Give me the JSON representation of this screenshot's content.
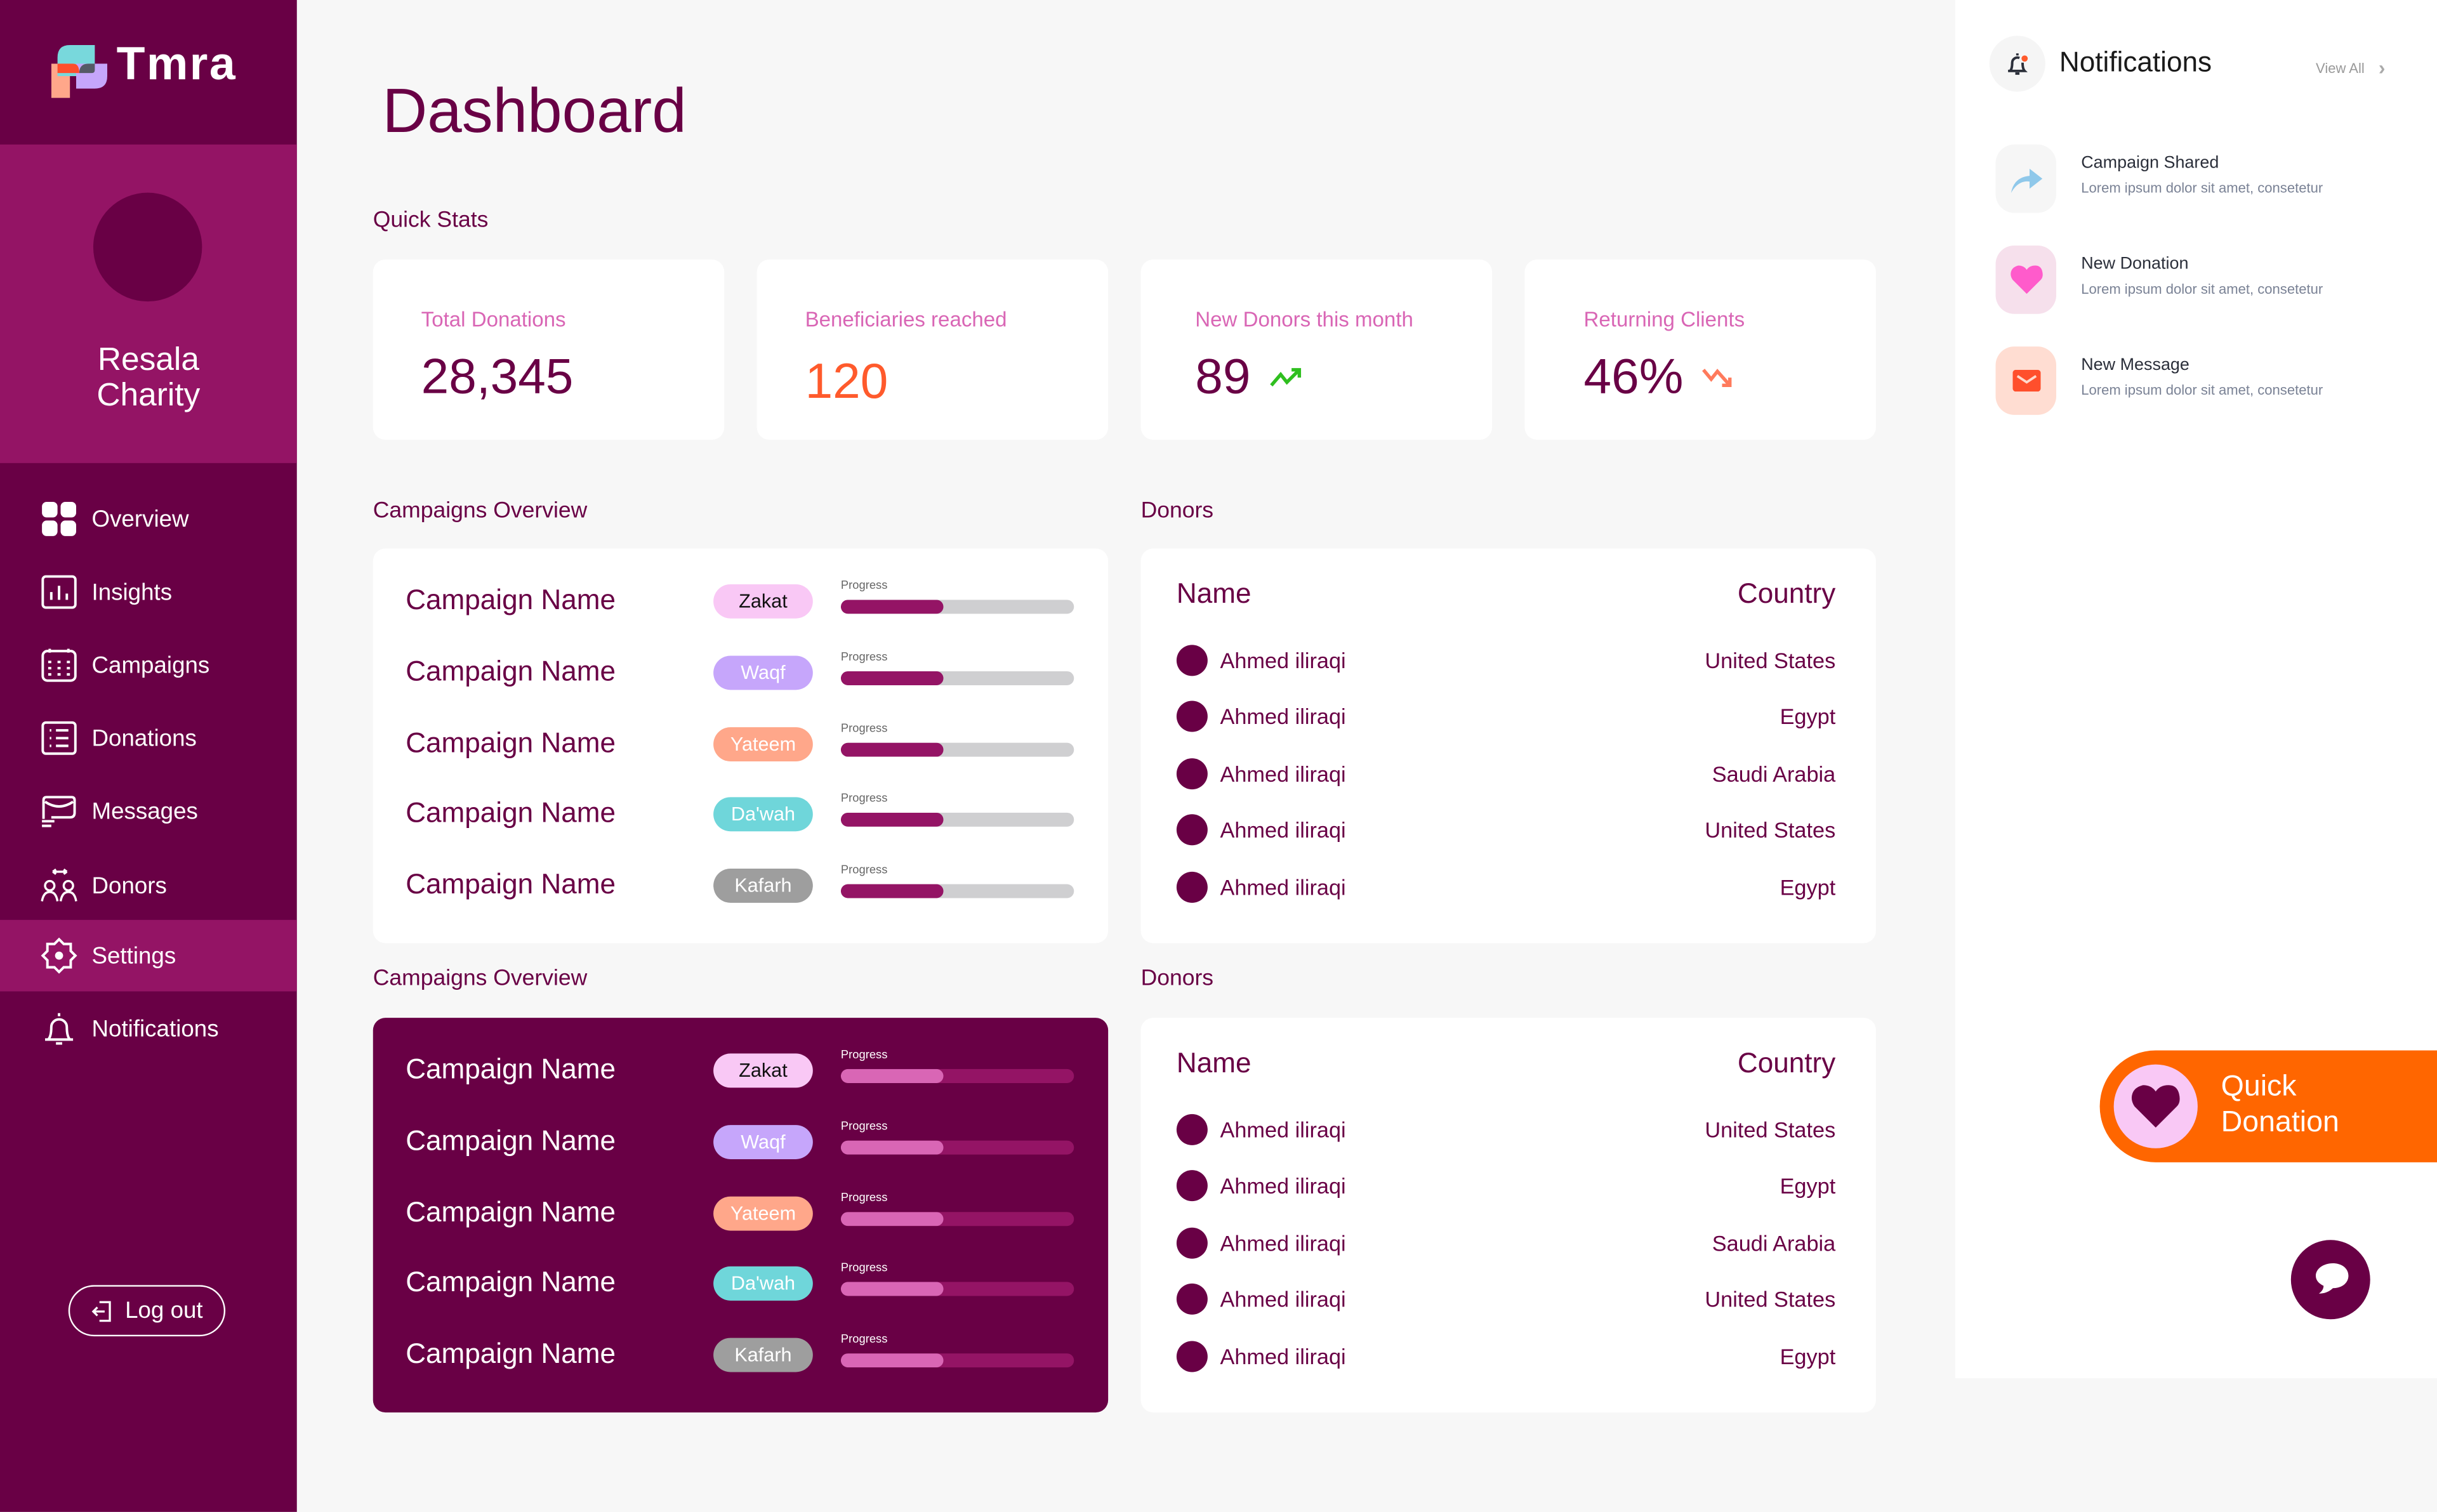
{
  "brand": {
    "name": "Tmra"
  },
  "profile": {
    "name": "Resala Charity"
  },
  "nav": [
    {
      "label": "Overview",
      "icon": "grid-icon"
    },
    {
      "label": "Insights",
      "icon": "bar-chart-icon"
    },
    {
      "label": "Campaigns",
      "icon": "calendar-icon"
    },
    {
      "label": "Donations",
      "icon": "list-icon"
    },
    {
      "label": "Messages",
      "icon": "mail-icon"
    },
    {
      "label": "Donors",
      "icon": "users-icon"
    },
    {
      "label": "Settings",
      "icon": "gear-icon",
      "active": true
    },
    {
      "label": "Notifications",
      "icon": "bell-icon"
    }
  ],
  "logout": "Log out",
  "page_title": "Dashboard",
  "quick_stats": {
    "label": "Quick Stats",
    "cards": [
      {
        "label": "Total Donations",
        "value": "28,345"
      },
      {
        "label": "Beneficiaries reached",
        "value": "120"
      },
      {
        "label": "New Donors this month",
        "value": "89",
        "trend": "up"
      },
      {
        "label": "Returning Clients",
        "value": "46%",
        "trend": "down"
      }
    ]
  },
  "campaigns_1": {
    "label": "Campaigns Overview",
    "rows": [
      {
        "name": "Campaign Name",
        "tag": "Zakat",
        "progress_label": "Progress",
        "progress": 44
      },
      {
        "name": "Campaign Name",
        "tag": "Waqf",
        "progress_label": "Progress",
        "progress": 44
      },
      {
        "name": "Campaign Name",
        "tag": "Yateem",
        "progress_label": "Progress",
        "progress": 44
      },
      {
        "name": "Campaign Name",
        "tag": "Da'wah",
        "progress_label": "Progress",
        "progress": 44
      },
      {
        "name": "Campaign Name",
        "tag": "Kafarh",
        "progress_label": "Progress",
        "progress": 44
      }
    ]
  },
  "campaigns_2": {
    "label": "Campaigns Overview",
    "rows": [
      {
        "name": "Campaign Name",
        "tag": "Zakat",
        "progress_label": "Progress",
        "progress": 44
      },
      {
        "name": "Campaign Name",
        "tag": "Waqf",
        "progress_label": "Progress",
        "progress": 44
      },
      {
        "name": "Campaign Name",
        "tag": "Yateem",
        "progress_label": "Progress",
        "progress": 44
      },
      {
        "name": "Campaign Name",
        "tag": "Da'wah",
        "progress_label": "Progress",
        "progress": 44
      },
      {
        "name": "Campaign Name",
        "tag": "Kafarh",
        "progress_label": "Progress",
        "progress": 44
      }
    ]
  },
  "tag_colors": {
    "Zakat": [
      "#f9c8f5",
      "#111111"
    ],
    "Waqf": [
      "#c6a6fb",
      "#ffffff"
    ],
    "Yateem": [
      "#ffa78a",
      "#ffffff"
    ],
    "Da'wah": [
      "#6fd6da",
      "#ffffff"
    ],
    "Kafarh": [
      "#9e9e9e",
      "#ffffff"
    ]
  },
  "donors_1": {
    "label": "Donors",
    "col_name": "Name",
    "col_country": "Country",
    "rows": [
      {
        "name": "Ahmed iliraqi",
        "country": "United States"
      },
      {
        "name": "Ahmed iliraqi",
        "country": "Egypt"
      },
      {
        "name": "Ahmed iliraqi",
        "country": "Saudi Arabia"
      },
      {
        "name": "Ahmed iliraqi",
        "country": "United States"
      },
      {
        "name": "Ahmed iliraqi",
        "country": "Egypt"
      }
    ]
  },
  "donors_2": {
    "label": "Donors",
    "col_name": "Name",
    "col_country": "Country",
    "rows": [
      {
        "name": "Ahmed iliraqi",
        "country": "United States"
      },
      {
        "name": "Ahmed iliraqi",
        "country": "Egypt"
      },
      {
        "name": "Ahmed iliraqi",
        "country": "Saudi Arabia"
      },
      {
        "name": "Ahmed iliraqi",
        "country": "United States"
      },
      {
        "name": "Ahmed iliraqi",
        "country": "Egypt"
      }
    ]
  },
  "notifications": {
    "title": "Notifications",
    "view_all": "View All",
    "items": [
      {
        "title": "Campaign Shared",
        "body": "Lorem ipsum dolor sit amet, consetetur",
        "icon": "share-icon"
      },
      {
        "title": "New Donation",
        "body": "Lorem ipsum dolor sit amet, consetetur",
        "icon": "heart-icon"
      },
      {
        "title": "New Message",
        "body": "Lorem ipsum dolor sit amet, consetetur",
        "icon": "mail-icon"
      }
    ]
  },
  "quick_donation": {
    "line1": "Quick",
    "line2": "Donation"
  },
  "colors": {
    "primary": "#690045",
    "secondary": "#941465",
    "accent": "#ff6600",
    "pink": "#d966b5"
  }
}
